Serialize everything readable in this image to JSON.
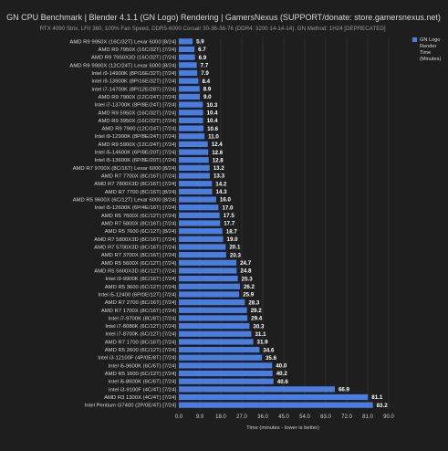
{
  "chart_data": {
    "type": "bar",
    "orientation": "horizontal",
    "title": "GN CPU Benchmark | Blender 4.1.1 (GN Logo) Rendering | GamersNexus (SUPPORT/donate: store.gamersnexus.net)",
    "subtitle": "RTX 4090 Strix, LFII 360, 100% Fan Speed, DDR5-6000 Corsair 30-36-36-76 (DDR4: 3200 14-14-14), GN Method: 1H24 [DEPRECATED]",
    "xlabel": "Time (minutes - lower is better)",
    "ylabel": "",
    "xlim": [
      0,
      90
    ],
    "xticks": [
      "0.0",
      "9.0",
      "18.0",
      "27.0",
      "36.0",
      "45.0",
      "54.0",
      "63.0",
      "72.0",
      "81.0",
      "90.0"
    ],
    "grid": true,
    "legend": {
      "position": "top-right",
      "label": "GN Logo Render Time (Minutes)"
    },
    "colors": {
      "background": "#1e1e1e",
      "bar": "#4a7de0",
      "text": "#d8d8d8",
      "grid": "#3a3a3a"
    },
    "categories": [
      "AMD R9 9950X (16C/32T) Lexar 6000 [8/24]",
      "AMD R9 7950X (16C/32T) [7/24]",
      "AMD R9 7950X3D (16C/32T) [7/24]",
      "AMD R9 9900X (12C/24T) Lexar 6000 [8/24]",
      "Intel i9-14900K (8P/16E/32T) [7/24]",
      "Intel i9-13900K (8P/16E/32T) [7/24]",
      "Intel i7-14700K (8P/12E/28T) [7/24]",
      "AMD R9 7900X (12C/24T) [7/24]",
      "Intel i7-13700K (8P/8E/24T) [7/24]",
      "AMD R9 5950X (16C/32T) [7/24]",
      "AMD R9 3950X (16C/32T) [7/24]",
      "AMD R9 7900 (12C/24T) [7/24]",
      "Intel i9-12900K (8P/8E/24T) [7/24]",
      "AMD R9 5900X (12C/24T) [7/24]",
      "Intel i5-14600K (6P/8E/20T) [7/24]",
      "Intel i5-13600K (6P/8E/20T) [7/24]",
      "AMD R7 9700X (8C/16T) Lexar 6000 [8/24]",
      "AMD R7 7700X (8C/16T) [7/24]",
      "AMD R7 7800X3D (8C/16T) [7/24]",
      "AMD R7 7700 (8C/16T) [8/24]",
      "AMD R5 9600X (6C/12T) Lexar 6000 [8/24]",
      "Intel i5-12600K (6P/4E/16T) [7/24]",
      "AMD R5 7600X (6C/12T) [7/24]",
      "AMD R7 5800X (8C/16T) [7/24]",
      "AMD R5 7600 (6C/12T) [8/24]",
      "AMD R7 5800X3D (8C/16T) [7/24]",
      "AMD R7 5700X3D (8C/16T) [7/24]",
      "AMD R7 3700X (8C/16T) [7/24]",
      "AMD R5 5600X (6C/12T) [7/24]",
      "AMD R5 5600X3D (6C/12T) [7/24]",
      "Intel i9-9900K (8C/16T) [7/24]",
      "AMD R5 3600 (6C/12T) [7/24]",
      "Intel i5-12400 (6P/0E/12T) [7/24]",
      "AMD R7 2700 (8C/16T) [7/24]",
      "AMD R7 1700X (8C/16T) [7/24]",
      "Intel i7-9700K (8C/8T) [7/24]",
      "Intel i7-8086K (6C/12T) [7/24]",
      "Intel i7-8700K (6C/12T) [7/24]",
      "AMD R7 1700 (8C/16T) [7/24]",
      "AMD R5 2600 (6C/12T) [7/24]",
      "Intel i3-12100F (4P/0E/8T) [7/24]",
      "Intel i5-9600K (6C/6T) [7/24]",
      "AMD R5 1600 (6C/12T) [7/24]",
      "Intel i5-8600K (6C/6T) [7/24]",
      "Intel i3-9100F (4C/4T) [7/24]",
      "AMD R3 1300X (4C/4T) [7/24]",
      "Intel Pentium G7400 (2P/0E/4T) [7/24]"
    ],
    "values": [
      5.9,
      6.7,
      6.9,
      7.7,
      7.9,
      8.4,
      8.9,
      9.0,
      10.3,
      10.4,
      10.4,
      10.6,
      11.0,
      12.4,
      12.6,
      12.8,
      13.2,
      13.3,
      14.2,
      14.3,
      16.0,
      17.0,
      17.5,
      17.7,
      18.7,
      19.0,
      20.1,
      20.3,
      24.7,
      24.8,
      25.3,
      26.2,
      25.9,
      28.3,
      29.2,
      29.4,
      30.3,
      31.1,
      31.9,
      34.6,
      35.6,
      40.0,
      40.2,
      40.6,
      66.9,
      81.1,
      83.2
    ],
    "value_labels": [
      "5.9",
      "6.7",
      "6.9",
      "7.7",
      "7.9",
      "8.4",
      "8.9",
      "9.0",
      "10.3",
      "10.4",
      "10.4",
      "10.6",
      "11.0",
      "12.4",
      "12.6",
      "12.8",
      "13.2",
      "13.3",
      "14.2",
      "14.3",
      "16.0",
      "17.0",
      "17.5",
      "17.7",
      "18.7",
      "19.0",
      "20.1",
      "20.3",
      "24.7",
      "24.8",
      "25.3",
      "26.2",
      "25.9",
      "28.3",
      "29.2",
      "29.4",
      "30.3",
      "31.1",
      "31.9",
      "34.6",
      "35.6",
      "40.0",
      "40.2",
      "40.6",
      "66.9",
      "81.1",
      "83.2"
    ]
  }
}
